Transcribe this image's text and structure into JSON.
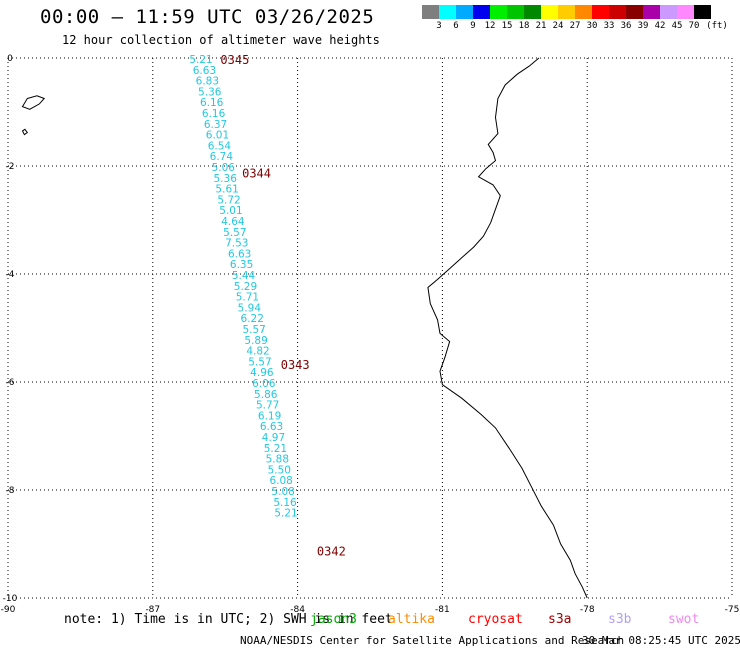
{
  "header": {
    "title": "00:00 — 11:59 UTC 03/26/2025",
    "subtitle": "12 hour collection of altimeter wave heights"
  },
  "color_scale": {
    "unit": "(ft)",
    "bins": [
      {
        "color": "#7f7f7f",
        "label": "3"
      },
      {
        "color": "#00ffff",
        "label": "6"
      },
      {
        "color": "#00aaff",
        "label": "9"
      },
      {
        "color": "#0000ee",
        "label": "12"
      },
      {
        "color": "#00ee00",
        "label": "15"
      },
      {
        "color": "#00c400",
        "label": "18"
      },
      {
        "color": "#008800",
        "label": "21"
      },
      {
        "color": "#ffff00",
        "label": "24"
      },
      {
        "color": "#ffcc00",
        "label": "27"
      },
      {
        "color": "#ff8800",
        "label": "30"
      },
      {
        "color": "#ff0000",
        "label": "33"
      },
      {
        "color": "#cc0000",
        "label": "36"
      },
      {
        "color": "#880000",
        "label": "39"
      },
      {
        "color": "#aa00aa",
        "label": "42"
      },
      {
        "color": "#cc99ff",
        "label": "45"
      },
      {
        "color": "#ff88ff",
        "label": "70"
      },
      {
        "color": "#000000",
        "label": ""
      }
    ]
  },
  "map": {
    "lon_range": [
      -90,
      -75
    ],
    "lat_range": [
      -10,
      0
    ],
    "x_ticks": [
      "-90",
      "-87",
      "-84",
      "-81",
      "-78",
      "-75"
    ],
    "y_ticks": [
      "0",
      "-2",
      "-4",
      "-6",
      "-8",
      "-10"
    ],
    "colors": {
      "obs": "#22c8e0",
      "time": "#800000",
      "coast": "#000000",
      "grid": "#000000"
    },
    "observations": [
      {
        "lon": -86.0,
        "lat": 0.0,
        "value": "5.21"
      },
      {
        "lon": -85.93,
        "lat": -0.2,
        "value": "6.63"
      },
      {
        "lon": -85.87,
        "lat": -0.4,
        "value": "6.83"
      },
      {
        "lon": -85.82,
        "lat": -0.6,
        "value": "5.36"
      },
      {
        "lon": -85.78,
        "lat": -0.8,
        "value": "6.16"
      },
      {
        "lon": -85.74,
        "lat": -1.0,
        "value": "6.16"
      },
      {
        "lon": -85.7,
        "lat": -1.2,
        "value": "6.37"
      },
      {
        "lon": -85.66,
        "lat": -1.4,
        "value": "6.01"
      },
      {
        "lon": -85.62,
        "lat": -1.6,
        "value": "6.54"
      },
      {
        "lon": -85.58,
        "lat": -1.8,
        "value": "6.74"
      },
      {
        "lon": -85.54,
        "lat": -2.0,
        "value": "5.06"
      },
      {
        "lon": -85.5,
        "lat": -2.2,
        "value": "5.36"
      },
      {
        "lon": -85.46,
        "lat": -2.4,
        "value": "5.61"
      },
      {
        "lon": -85.42,
        "lat": -2.6,
        "value": "5.72"
      },
      {
        "lon": -85.38,
        "lat": -2.8,
        "value": "5.01"
      },
      {
        "lon": -85.34,
        "lat": -3.0,
        "value": "4.64"
      },
      {
        "lon": -85.3,
        "lat": -3.2,
        "value": "5.57"
      },
      {
        "lon": -85.26,
        "lat": -3.4,
        "value": "7.53"
      },
      {
        "lon": -85.2,
        "lat": -3.6,
        "value": "6.63"
      },
      {
        "lon": -85.16,
        "lat": -3.8,
        "value": "6.35"
      },
      {
        "lon": -85.12,
        "lat": -4.0,
        "value": "5.44"
      },
      {
        "lon": -85.08,
        "lat": -4.2,
        "value": "5.29"
      },
      {
        "lon": -85.04,
        "lat": -4.4,
        "value": "5.71"
      },
      {
        "lon": -85.0,
        "lat": -4.6,
        "value": "5.94"
      },
      {
        "lon": -84.94,
        "lat": -4.8,
        "value": "6.22"
      },
      {
        "lon": -84.9,
        "lat": -5.0,
        "value": "5.57"
      },
      {
        "lon": -84.86,
        "lat": -5.2,
        "value": "5.89"
      },
      {
        "lon": -84.82,
        "lat": -5.4,
        "value": "4.82"
      },
      {
        "lon": -84.78,
        "lat": -5.6,
        "value": "5.57"
      },
      {
        "lon": -84.74,
        "lat": -5.8,
        "value": "4.96"
      },
      {
        "lon": -84.7,
        "lat": -6.0,
        "value": "6.06"
      },
      {
        "lon": -84.66,
        "lat": -6.2,
        "value": "5.86"
      },
      {
        "lon": -84.62,
        "lat": -6.4,
        "value": "5.77"
      },
      {
        "lon": -84.58,
        "lat": -6.6,
        "value": "6.19"
      },
      {
        "lon": -84.54,
        "lat": -6.8,
        "value": "6.63"
      },
      {
        "lon": -84.5,
        "lat": -7.0,
        "value": "4.97"
      },
      {
        "lon": -84.46,
        "lat": -7.2,
        "value": "5.21"
      },
      {
        "lon": -84.42,
        "lat": -7.4,
        "value": "5.88"
      },
      {
        "lon": -84.38,
        "lat": -7.6,
        "value": "5.50"
      },
      {
        "lon": -84.34,
        "lat": -7.8,
        "value": "6.08"
      },
      {
        "lon": -84.3,
        "lat": -8.0,
        "value": "5.08"
      },
      {
        "lon": -84.26,
        "lat": -8.2,
        "value": "5.16"
      },
      {
        "lon": -84.24,
        "lat": -8.4,
        "value": "5.21"
      }
    ],
    "time_labels": [
      {
        "lon": -85.3,
        "lat": 0.0,
        "text": "0345"
      },
      {
        "lon": -84.85,
        "lat": -2.1,
        "text": "0344"
      },
      {
        "lon": -84.05,
        "lat": -5.65,
        "text": "0343"
      },
      {
        "lon": -83.3,
        "lat": -9.1,
        "text": "0342"
      }
    ],
    "coastline": [
      [
        -79.0,
        0.0
      ],
      [
        -79.2,
        -0.15
      ],
      [
        -79.45,
        -0.3
      ],
      [
        -79.7,
        -0.5
      ],
      [
        -79.85,
        -0.75
      ],
      [
        -79.9,
        -1.1
      ],
      [
        -79.85,
        -1.4
      ],
      [
        -80.05,
        -1.6
      ],
      [
        -79.95,
        -1.75
      ],
      [
        -79.9,
        -1.9
      ],
      [
        -80.1,
        -2.05
      ],
      [
        -80.25,
        -2.2
      ],
      [
        -79.95,
        -2.35
      ],
      [
        -79.8,
        -2.55
      ],
      [
        -79.9,
        -2.8
      ],
      [
        -80.0,
        -3.05
      ],
      [
        -80.15,
        -3.3
      ],
      [
        -80.35,
        -3.5
      ],
      [
        -80.6,
        -3.7
      ],
      [
        -80.85,
        -3.9
      ],
      [
        -81.1,
        -4.1
      ],
      [
        -81.3,
        -4.25
      ],
      [
        -81.25,
        -4.55
      ],
      [
        -81.1,
        -4.85
      ],
      [
        -81.05,
        -5.1
      ],
      [
        -80.85,
        -5.25
      ],
      [
        -80.95,
        -5.55
      ],
      [
        -81.05,
        -5.8
      ],
      [
        -81.0,
        -6.05
      ],
      [
        -80.6,
        -6.3
      ],
      [
        -80.2,
        -6.6
      ],
      [
        -79.9,
        -6.85
      ],
      [
        -79.6,
        -7.25
      ],
      [
        -79.35,
        -7.6
      ],
      [
        -79.15,
        -7.95
      ],
      [
        -78.95,
        -8.3
      ],
      [
        -78.7,
        -8.65
      ],
      [
        -78.55,
        -9.0
      ],
      [
        -78.35,
        -9.3
      ],
      [
        -78.25,
        -9.55
      ],
      [
        -78.1,
        -9.8
      ],
      [
        -78.0,
        -10.0
      ]
    ],
    "islands": [
      [
        [
          -89.6,
          -0.75
        ],
        [
          -89.4,
          -0.7
        ],
        [
          -89.25,
          -0.75
        ],
        [
          -89.35,
          -0.85
        ],
        [
          -89.55,
          -0.95
        ],
        [
          -89.7,
          -0.9
        ]
      ],
      [
        [
          -89.7,
          -1.35
        ],
        [
          -89.65,
          -1.32
        ],
        [
          -89.6,
          -1.38
        ],
        [
          -89.66,
          -1.42
        ]
      ]
    ]
  },
  "footer": {
    "note": "note: 1) Time is in UTC; 2) SWH is in feet",
    "satellites": [
      {
        "name": "jason3",
        "color": "#00aa00"
      },
      {
        "name": "altika",
        "color": "#ff8c00"
      },
      {
        "name": "cryosat",
        "color": "#ff0000"
      },
      {
        "name": "s3a",
        "color": "#990000"
      },
      {
        "name": "s3b",
        "color": "#b0a0ee"
      },
      {
        "name": "swot",
        "color": "#ee88ee"
      }
    ],
    "credit": "NOAA/NESDIS Center for Satellite Applications and Research",
    "timestamp": "30 Mar 08:25:45 UTC 2025"
  }
}
